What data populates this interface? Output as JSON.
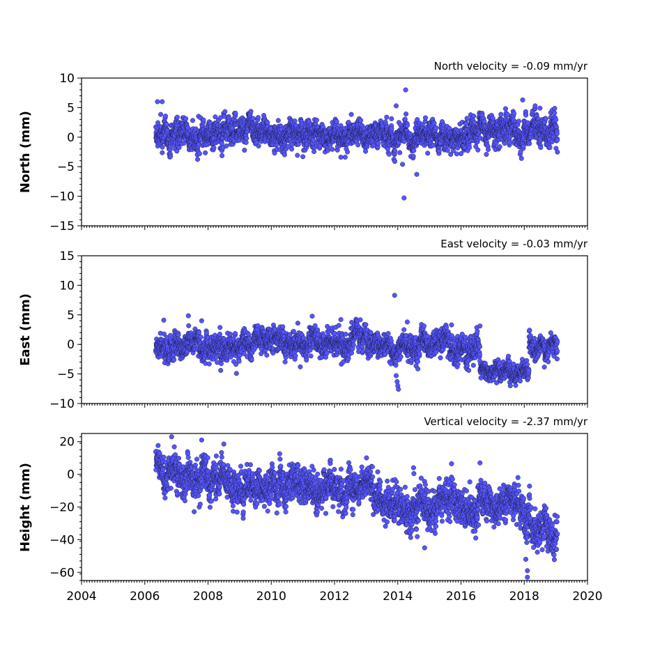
{
  "chart_data": [
    {
      "type": "scatter",
      "panel": "north",
      "ylabel": "North (mm)",
      "annotation": "North velocity = -0.09 mm/yr",
      "xlim": [
        2004,
        2020
      ],
      "ylim": [
        -15,
        10
      ],
      "yticks": [
        10,
        5,
        0,
        -5,
        -10,
        -15
      ],
      "show_xtick_labels": false,
      "marker_color": "#5555ff",
      "x_range": [
        2006.35,
        2019.05
      ],
      "segments": [
        {
          "x": [
            2006.35,
            2009.0
          ],
          "mean_start": 0.6,
          "mean_end": 0.8,
          "spread": 1.2
        },
        {
          "x": [
            2009.0,
            2013.5
          ],
          "mean_start": 0.8,
          "mean_end": 0.4,
          "spread": 1.1
        },
        {
          "x": [
            2013.5,
            2016.5
          ],
          "mean_start": 0.3,
          "mean_end": 0.6,
          "spread": 1.1
        },
        {
          "x": [
            2016.5,
            2019.05
          ],
          "mean_start": 1.8,
          "mean_end": 1.2,
          "spread": 1.2
        }
      ],
      "outliers": [
        {
          "x": 2006.4,
          "y": 6.0
        },
        {
          "x": 2006.55,
          "y": 6.0
        },
        {
          "x": 2014.25,
          "y": 8.0
        },
        {
          "x": 2014.2,
          "y": -10.3
        },
        {
          "x": 2014.6,
          "y": -6.3
        },
        {
          "x": 2014.15,
          "y": -4.6
        },
        {
          "x": 2013.95,
          "y": 5.3
        },
        {
          "x": 2017.95,
          "y": 6.3
        },
        {
          "x": 2011.0,
          "y": -3.3
        },
        {
          "x": 2012.2,
          "y": -3.4
        },
        {
          "x": 2016.0,
          "y": -2.8
        },
        {
          "x": 2018.5,
          "y": 4.9
        }
      ]
    },
    {
      "type": "scatter",
      "panel": "east",
      "ylabel": "East (mm)",
      "annotation": "East velocity = -0.03 mm/yr",
      "xlim": [
        2004,
        2020
      ],
      "ylim": [
        -10,
        15
      ],
      "yticks": [
        15,
        10,
        5,
        0,
        -5,
        -10
      ],
      "show_xtick_labels": false,
      "marker_color": "#5555ff",
      "x_range": [
        2006.35,
        2019.05
      ],
      "segments": [
        {
          "x": [
            2006.35,
            2012.5
          ],
          "mean_start": 0.0,
          "mean_end": -0.2,
          "spread": 1.1
        },
        {
          "x": [
            2012.5,
            2013.3
          ],
          "mean_start": 1.0,
          "mean_end": 0.5,
          "spread": 1.1
        },
        {
          "x": [
            2013.3,
            2016.6
          ],
          "mean_start": -0.2,
          "mean_end": -0.8,
          "spread": 1.1
        },
        {
          "x": [
            2016.6,
            2018.15
          ],
          "mean_start": -4.6,
          "mean_end": -4.6,
          "spread": 0.8
        },
        {
          "x": [
            2018.15,
            2019.05
          ],
          "mean_start": -0.4,
          "mean_end": -0.8,
          "spread": 0.9
        }
      ],
      "outliers": [
        {
          "x": 2013.9,
          "y": 8.3
        },
        {
          "x": 2013.95,
          "y": -5.3
        },
        {
          "x": 2013.98,
          "y": -6.3
        },
        {
          "x": 2014.0,
          "y": -7.0
        },
        {
          "x": 2014.02,
          "y": -7.6
        },
        {
          "x": 2006.6,
          "y": 4.1
        },
        {
          "x": 2007.8,
          "y": 4.0
        },
        {
          "x": 2012.2,
          "y": 4.2
        },
        {
          "x": 2008.9,
          "y": -4.9
        },
        {
          "x": 2008.4,
          "y": -4.4
        },
        {
          "x": 2014.3,
          "y": 3.8
        },
        {
          "x": 2015.7,
          "y": 3.3
        }
      ]
    },
    {
      "type": "scatter",
      "panel": "height",
      "ylabel": "Height (mm)",
      "annotation": "Vertical velocity = -2.37 mm/yr",
      "xlim": [
        2004,
        2020
      ],
      "ylim": [
        -65,
        25
      ],
      "yticks": [
        20,
        0,
        -20,
        -40,
        -60
      ],
      "xticks": [
        2004,
        2006,
        2008,
        2010,
        2012,
        2014,
        2016,
        2018,
        2020
      ],
      "show_xtick_labels": true,
      "marker_color": "#5555ff",
      "x_range": [
        2006.35,
        2019.05
      ],
      "segments": [
        {
          "x": [
            2006.35,
            2007.0
          ],
          "mean_start": 7.0,
          "mean_end": 3.0,
          "spread": 5.0
        },
        {
          "x": [
            2007.0,
            2009.0
          ],
          "mean_start": 0.0,
          "mean_end": -4.0,
          "spread": 5.5
        },
        {
          "x": [
            2009.0,
            2012.6
          ],
          "mean_start": -8.0,
          "mean_end": -9.0,
          "spread": 5.5
        },
        {
          "x": [
            2012.6,
            2013.2
          ],
          "mean_start": -2.0,
          "mean_end": -6.0,
          "spread": 5.0
        },
        {
          "x": [
            2013.2,
            2016.5
          ],
          "mean_start": -15.0,
          "mean_end": -25.0,
          "spread": 6.0
        },
        {
          "x": [
            2016.5,
            2018.0
          ],
          "mean_start": -17.0,
          "mean_end": -22.0,
          "spread": 5.5
        },
        {
          "x": [
            2018.0,
            2019.05
          ],
          "mean_start": -32.0,
          "mean_end": -36.0,
          "spread": 6.0
        }
      ],
      "outliers": [
        {
          "x": 2006.85,
          "y": 23.0
        },
        {
          "x": 2007.8,
          "y": 21.0
        },
        {
          "x": 2008.5,
          "y": 18.5
        },
        {
          "x": 2018.1,
          "y": -59.0
        },
        {
          "x": 2018.1,
          "y": -63.0
        },
        {
          "x": 2018.05,
          "y": -52.0
        },
        {
          "x": 2014.85,
          "y": -45.0
        },
        {
          "x": 2016.6,
          "y": 7.0
        },
        {
          "x": 2015.7,
          "y": 6.5
        },
        {
          "x": 2014.5,
          "y": 4.0
        },
        {
          "x": 2017.8,
          "y": -2.0
        }
      ]
    }
  ]
}
